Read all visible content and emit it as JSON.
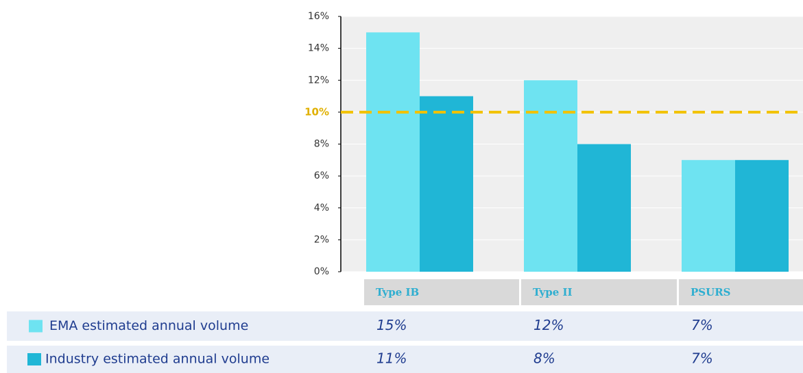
{
  "chart_data": {
    "type": "bar",
    "categories": [
      "Type IB",
      "Type II",
      "PSURS"
    ],
    "series": [
      {
        "name": "EMA estimated annual volume",
        "color": "#6ee3f1",
        "values": [
          15,
          12,
          7
        ],
        "value_labels": [
          "15%",
          "12%",
          "7%"
        ]
      },
      {
        "name": "Industry estimated annual volume",
        "color": "#20b6d6",
        "values": [
          11,
          8,
          7
        ],
        "value_labels": [
          "11%",
          "8%",
          "7%"
        ]
      }
    ],
    "ylim": [
      0,
      16
    ],
    "yticks": [
      {
        "value": 0,
        "label": "0%"
      },
      {
        "value": 2,
        "label": "2%"
      },
      {
        "value": 4,
        "label": "4%"
      },
      {
        "value": 6,
        "label": "6%"
      },
      {
        "value": 8,
        "label": "8%"
      },
      {
        "value": 10,
        "label": "10%"
      },
      {
        "value": 12,
        "label": "12%"
      },
      {
        "value": 14,
        "label": "14%"
      },
      {
        "value": 16,
        "label": "16%"
      }
    ],
    "grid": true,
    "reference_line": {
      "value": 10,
      "color": "#f2c200"
    }
  }
}
